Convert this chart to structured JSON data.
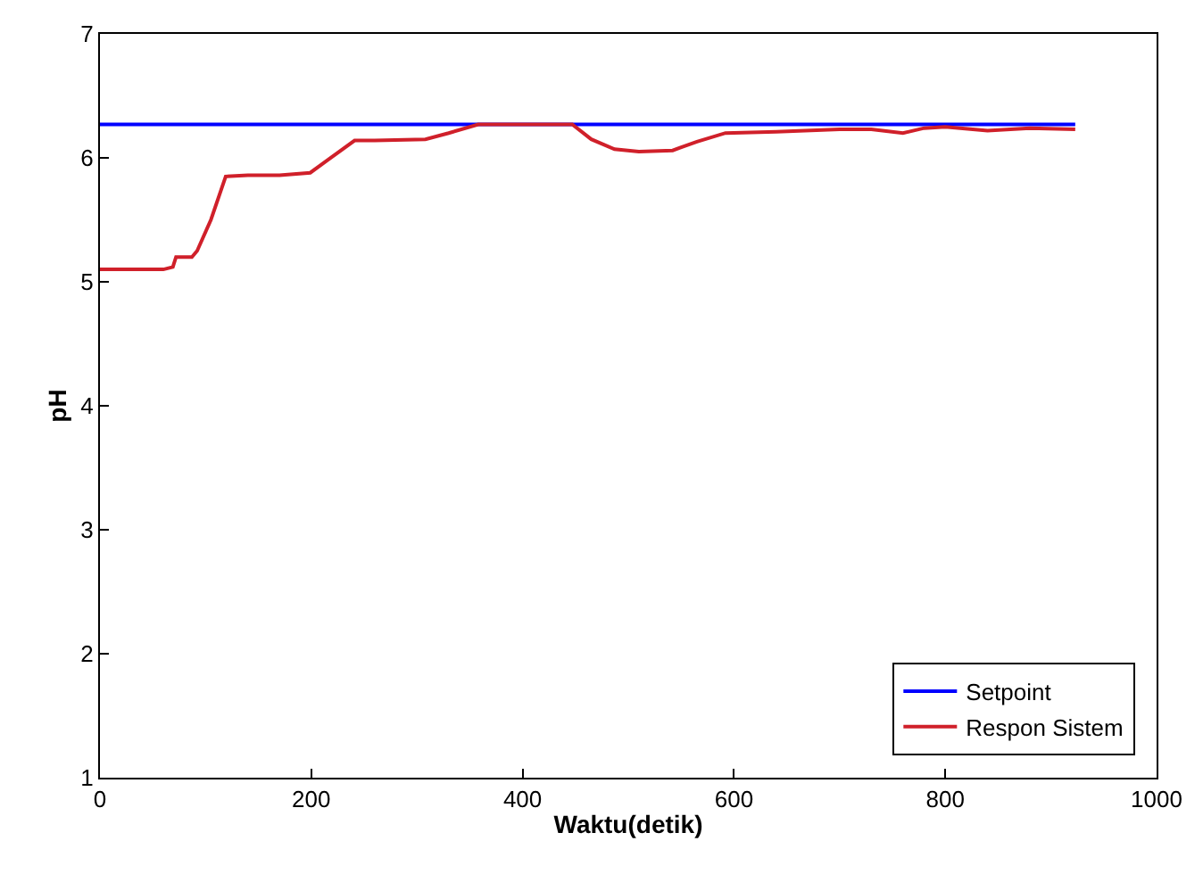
{
  "chart_data": {
    "type": "line",
    "xlabel": "Waktu(detik)",
    "ylabel": "pH",
    "xlim": [
      0,
      1000
    ],
    "ylim": [
      1,
      7
    ],
    "xticks": [
      0,
      200,
      400,
      600,
      800,
      1000
    ],
    "yticks": [
      1,
      2,
      3,
      4,
      5,
      6,
      7
    ],
    "legend": "bottom right",
    "line_style": "solid",
    "marker": "none",
    "series": [
      {
        "name": "Setpoint",
        "color": "#0000ff",
        "x": [
          0,
          923
        ],
        "values": [
          6.27,
          6.27
        ]
      },
      {
        "name": "Respon Sistem",
        "color": "#d0202a",
        "x": [
          0,
          30,
          60,
          69,
          72,
          87,
          92,
          105,
          119,
          140,
          170,
          199,
          215,
          241,
          260,
          308,
          330,
          358,
          380,
          420,
          447,
          465,
          487,
          510,
          542,
          565,
          592,
          640,
          700,
          730,
          760,
          780,
          800,
          840,
          880,
          923
        ],
        "values": [
          5.1,
          5.1,
          5.1,
          5.12,
          5.2,
          5.2,
          5.25,
          5.5,
          5.85,
          5.86,
          5.86,
          5.88,
          5.98,
          6.14,
          6.14,
          6.15,
          6.2,
          6.27,
          6.27,
          6.27,
          6.27,
          6.15,
          6.07,
          6.05,
          6.06,
          6.13,
          6.2,
          6.21,
          6.23,
          6.23,
          6.2,
          6.24,
          6.25,
          6.22,
          6.24,
          6.23
        ]
      }
    ]
  }
}
